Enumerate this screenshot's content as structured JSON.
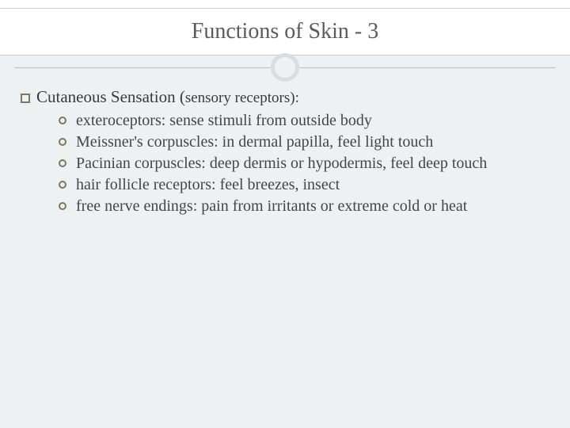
{
  "title": "Functions of Skin - 3",
  "heading_strong": "Cutaneous Sensation (",
  "heading_rest": "sensory receptors):",
  "bullets": [
    "exteroceptors: sense stimuli from outside body",
    "Meissner's corpuscles: in dermal papilla, feel  light  touch",
    "Pacinian corpuscles: deep dermis or hypodermis, feel deep touch",
    "hair follicle receptors: feel breezes, insect",
    "free nerve endings: pain from irritants or extreme cold or heat"
  ],
  "colors": {
    "slide_bg": "#eef1f3",
    "title_band_bg": "#ffffff",
    "band_border": "#c8cfd4",
    "ring_border": "#d8dde1",
    "rule": "#b9c2c8",
    "bullet_outline": "#7a7a57",
    "text": "#454545"
  }
}
